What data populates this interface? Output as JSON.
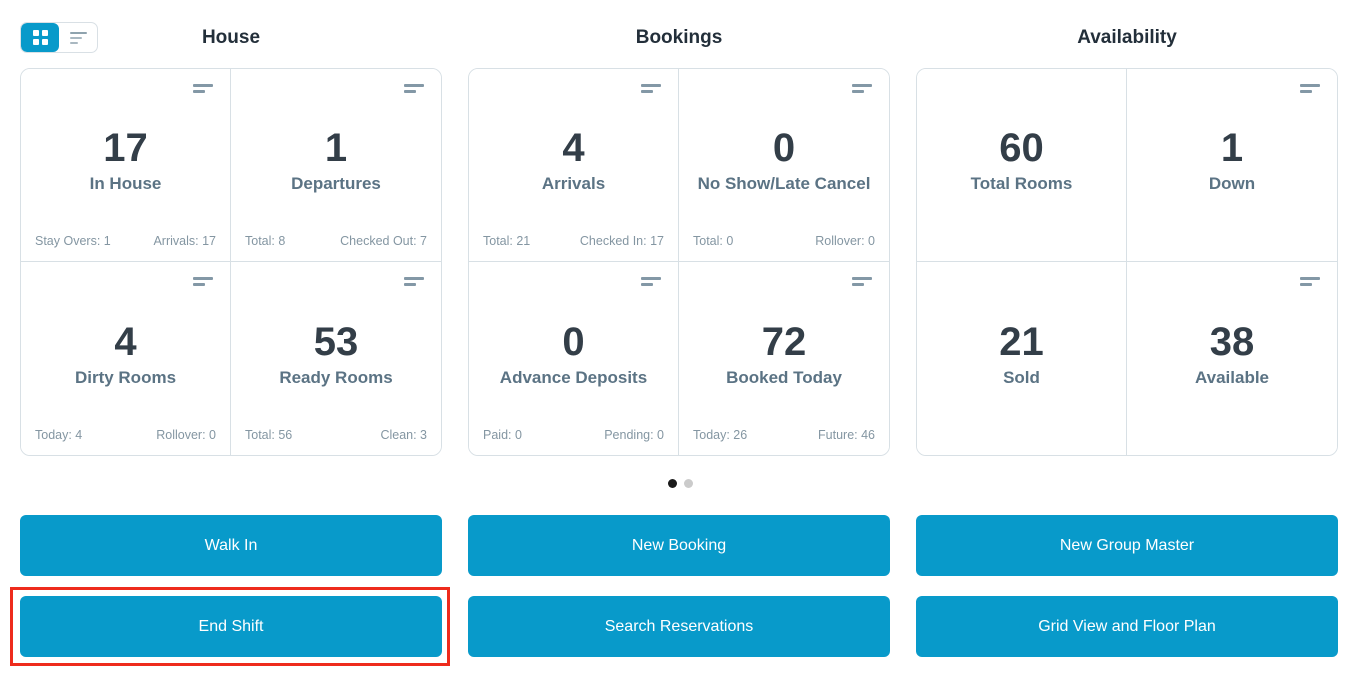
{
  "view_toggle": {
    "grid_view": {
      "name": "grid-view",
      "active": true
    },
    "list_view": {
      "name": "list-view",
      "active": false
    }
  },
  "sections": [
    {
      "title": "House",
      "cards": [
        {
          "value": "17",
          "label": "In House",
          "footer_left": "Stay Overs: 1",
          "footer_right": "Arrivals: 17"
        },
        {
          "value": "1",
          "label": "Departures",
          "footer_left": "Total: 8",
          "footer_right": "Checked Out: 7"
        },
        {
          "value": "4",
          "label": "Dirty Rooms",
          "footer_left": "Today: 4",
          "footer_right": "Rollover: 0"
        },
        {
          "value": "53",
          "label": "Ready Rooms",
          "footer_left": "Total: 56",
          "footer_right": "Clean: 3"
        }
      ]
    },
    {
      "title": "Bookings",
      "cards": [
        {
          "value": "4",
          "label": "Arrivals",
          "footer_left": "Total: 21",
          "footer_right": "Checked In: 17"
        },
        {
          "value": "0",
          "label": "No Show/Late Cancel",
          "footer_left": "Total: 0",
          "footer_right": "Rollover: 0"
        },
        {
          "value": "0",
          "label": "Advance Deposits",
          "footer_left": "Paid: 0",
          "footer_right": "Pending: 0"
        },
        {
          "value": "72",
          "label": "Booked Today",
          "footer_left": "Today: 26",
          "footer_right": "Future: 46"
        }
      ]
    },
    {
      "title": "Availability",
      "cards": [
        {
          "value": "60",
          "label": "Total Rooms"
        },
        {
          "value": "1",
          "label": "Down"
        },
        {
          "value": "21",
          "label": "Sold"
        },
        {
          "value": "38",
          "label": "Available"
        }
      ]
    }
  ],
  "pagination": {
    "page_count": 2,
    "active_page": 1
  },
  "actions": {
    "walk_in": "Walk In",
    "new_booking": "New Booking",
    "new_group_master": "New Group Master",
    "end_shift": "End Shift",
    "search_reservations": "Search Reservations",
    "grid_view_floor_plan": "Grid View and Floor Plan"
  },
  "annotation": {
    "target": "End Shift",
    "color": "#ee2b1c"
  },
  "colors": {
    "accent": "#089aca",
    "card_border": "#d8e0e5",
    "value_text": "#333e48",
    "label_text": "#5b7384",
    "footer_text": "#8496a2",
    "dot_active": "#1a1a1a",
    "dot_inactive": "#cbcbcb"
  }
}
